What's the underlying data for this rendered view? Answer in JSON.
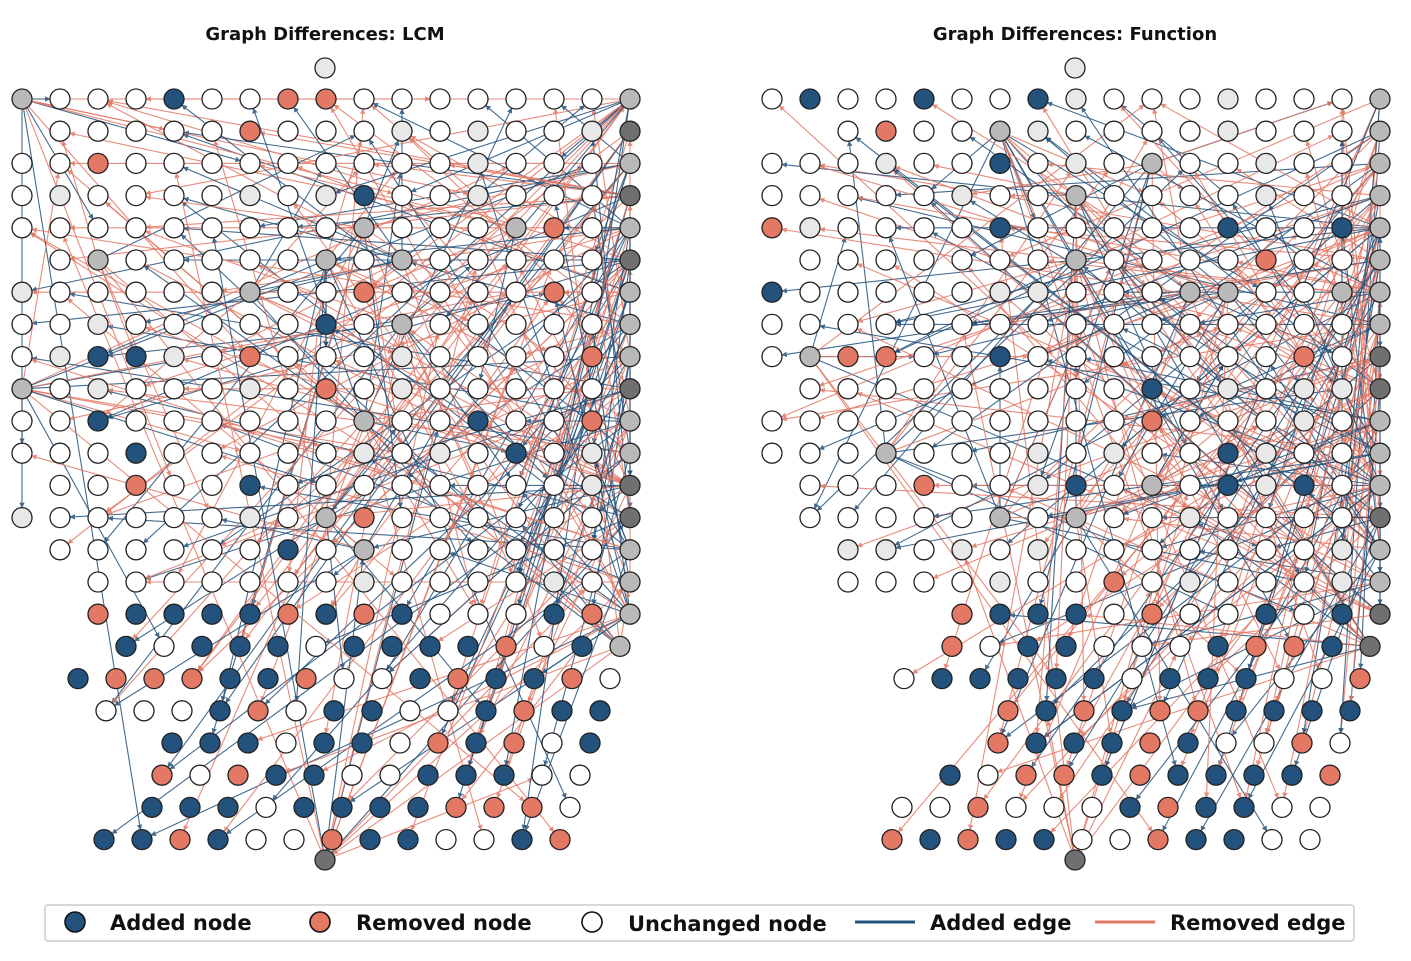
{
  "panels": [
    {
      "title": "Graph Differences: LCM",
      "counts": {
        "rows": [
          17,
          16,
          17,
          17,
          17,
          16,
          17,
          17,
          17,
          17,
          17,
          17,
          16,
          17,
          16,
          15,
          15,
          14,
          15,
          14,
          12,
          12,
          12,
          13
        ]
      }
    },
    {
      "title": "Graph Differences: Function",
      "counts": {
        "rows": [
          17,
          15,
          17,
          17,
          17,
          16,
          17,
          17,
          17,
          16,
          17,
          17,
          16,
          16,
          15,
          15,
          12,
          12,
          13,
          10,
          10,
          11,
          12,
          12
        ]
      }
    }
  ],
  "legend": {
    "items": [
      {
        "label": "Added node",
        "kind": "node",
        "color": "#23527c"
      },
      {
        "label": "Removed node",
        "kind": "node",
        "color": "#e37865"
      },
      {
        "label": "Unchanged node",
        "kind": "node",
        "color": "#ffffff"
      },
      {
        "label": "Added edge",
        "kind": "edge",
        "color": "#23527c"
      },
      {
        "label": "Removed edge",
        "kind": "edge",
        "color": "#e37865"
      }
    ]
  },
  "colors": {
    "added": "#23527c",
    "removed": "#e37865",
    "unchanged": "#ffffff",
    "hub_light": "#e8e8e8",
    "hub_mid": "#b9b9b9",
    "hub_dark": "#707070",
    "outline": "#222222"
  }
}
